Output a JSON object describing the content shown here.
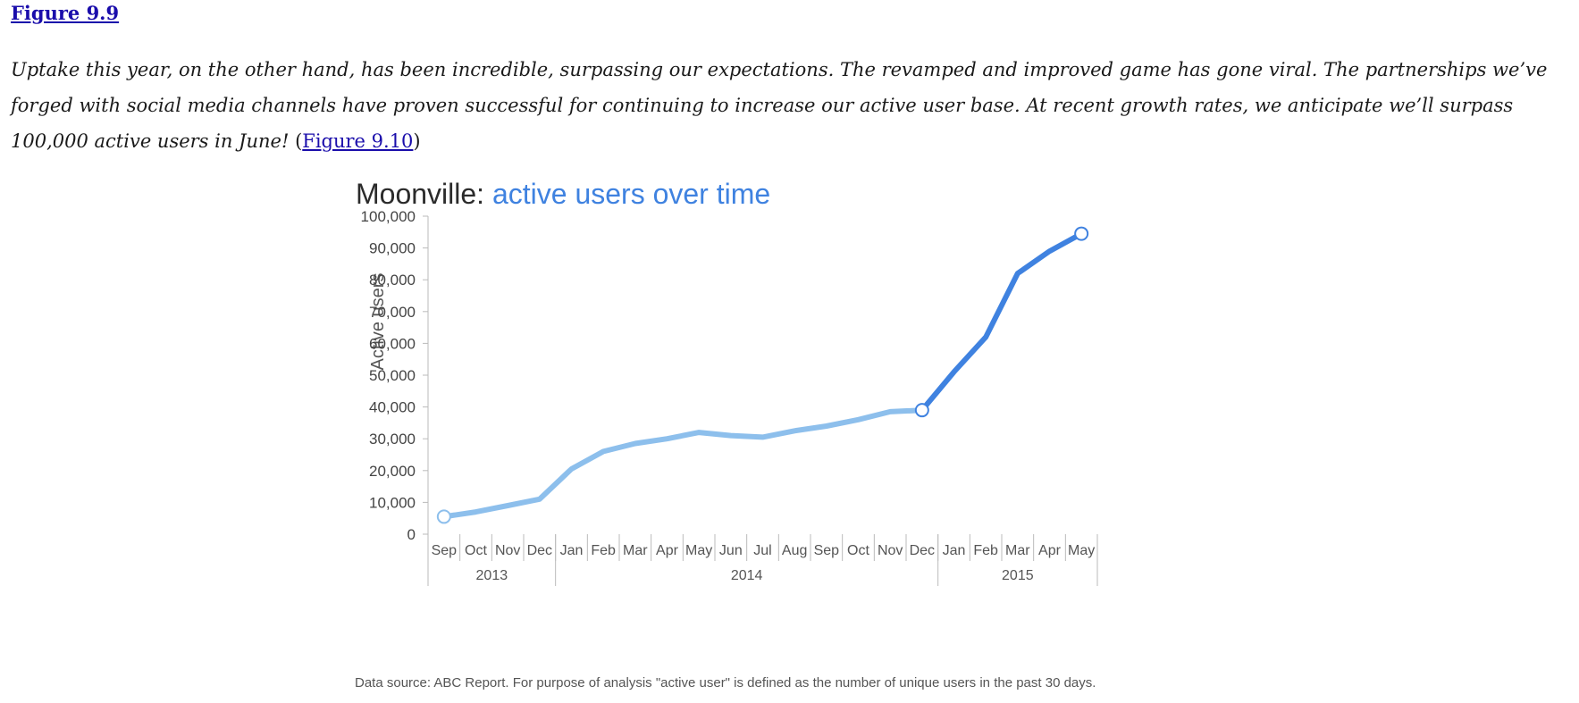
{
  "figure_link": "Figure 9.9",
  "paragraph": {
    "text": "Uptake this year, on the other hand, has been incredible, surpassing our expectations. The revamped and improved game has gone viral. The partnerships we’ve forged with social media channels have proven successful for continuing to increase our active user base. At recent growth rates, we anticipate we’ll surpass 100,000 active users in June!",
    "open_paren": " (",
    "link": "Figure 9.10",
    "close_paren": ")"
  },
  "chart_data": {
    "type": "line",
    "title_prefix": "Moonville: ",
    "title_highlight": "active users over time",
    "ylabel": "Active users",
    "ylim": [
      0,
      100000
    ],
    "yticks": [
      "0",
      "10,000",
      "20,000",
      "30,000",
      "40,000",
      "50,000",
      "60,000",
      "70,000",
      "80,000",
      "90,000",
      "100,000"
    ],
    "categories": [
      "Sep",
      "Oct",
      "Nov",
      "Dec",
      "Jan",
      "Feb",
      "Mar",
      "Apr",
      "May",
      "Jun",
      "Jul",
      "Aug",
      "Sep",
      "Oct",
      "Nov",
      "Dec",
      "Jan",
      "Feb",
      "Mar",
      "Apr",
      "May"
    ],
    "year_groups": [
      {
        "label": "2013",
        "count": 4
      },
      {
        "label": "2014",
        "count": 12
      },
      {
        "label": "2015",
        "count": 5
      }
    ],
    "values": [
      5500,
      7000,
      9000,
      11000,
      20500,
      26000,
      28500,
      30000,
      32000,
      31000,
      30500,
      32500,
      34000,
      36000,
      38500,
      39000,
      51000,
      62000,
      82000,
      89000,
      94500
    ],
    "highlight_start_index": 15,
    "colors": {
      "history": "#8dbfec",
      "recent": "#3f82e0",
      "title_prefix": "#2b2b2b",
      "title_highlight": "#3f82e0",
      "axis": "#bbbbbb"
    },
    "grid": false,
    "source_note": "Data source: ABC Report. For purpose of analysis \"active user\" is defined as the number of unique users in the past 30 days."
  }
}
